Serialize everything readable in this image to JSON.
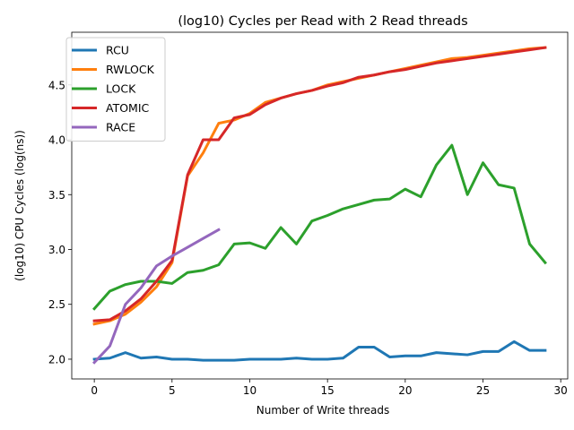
{
  "chart_data": {
    "type": "line",
    "title": "(log10) Cycles per Read with 2 Read threads",
    "xlabel": "Number of Write threads",
    "ylabel": "(log10) CPU Cycles (log(ns))",
    "xlim": [
      -1.45,
      30.45
    ],
    "ylim": [
      1.82,
      4.98
    ],
    "xticks": [
      0,
      5,
      10,
      15,
      20,
      25,
      30
    ],
    "yticks": [
      2.0,
      2.5,
      3.0,
      3.5,
      4.0,
      4.5
    ],
    "xtick_labels": [
      "0",
      "5",
      "10",
      "15",
      "20",
      "25",
      "30"
    ],
    "ytick_labels": [
      "2.0",
      "2.5",
      "3.0",
      "3.5",
      "4.0",
      "4.5"
    ],
    "grid": false,
    "legend_position": "top-left",
    "series": [
      {
        "name": "RCU",
        "color": "#1f77b4",
        "x": [
          0,
          1,
          2,
          3,
          4,
          5,
          6,
          7,
          8,
          9,
          10,
          11,
          12,
          13,
          14,
          15,
          16,
          17,
          18,
          19,
          20,
          21,
          22,
          23,
          24,
          25,
          26,
          27,
          28,
          29
        ],
        "values": [
          2.0,
          2.01,
          2.06,
          2.01,
          2.02,
          2.0,
          2.0,
          1.99,
          1.99,
          1.99,
          2.0,
          2.0,
          2.0,
          2.01,
          2.0,
          2.0,
          2.01,
          2.11,
          2.11,
          2.02,
          2.03,
          2.03,
          2.06,
          2.05,
          2.04,
          2.07,
          2.07,
          2.16,
          2.08,
          2.08
        ]
      },
      {
        "name": "RWLOCK",
        "color": "#ff7f0e",
        "x": [
          0,
          1,
          2,
          3,
          4,
          5,
          6,
          7,
          8,
          9,
          10,
          11,
          12,
          13,
          14,
          15,
          16,
          17,
          18,
          19,
          20,
          21,
          22,
          23,
          24,
          25,
          26,
          27,
          28,
          29
        ],
        "values": [
          2.32,
          2.35,
          2.41,
          2.52,
          2.66,
          2.88,
          3.67,
          3.88,
          4.15,
          4.18,
          4.24,
          4.34,
          4.38,
          4.42,
          4.45,
          4.5,
          4.53,
          4.56,
          4.59,
          4.62,
          4.65,
          4.68,
          4.71,
          4.74,
          4.75,
          4.77,
          4.79,
          4.81,
          4.83,
          4.84
        ]
      },
      {
        "name": "LOCK",
        "color": "#2ca02c",
        "x": [
          0,
          1,
          2,
          3,
          4,
          5,
          6,
          7,
          8,
          9,
          10,
          11,
          12,
          13,
          14,
          15,
          16,
          17,
          18,
          19,
          20,
          21,
          22,
          23,
          24,
          25,
          26,
          27,
          28,
          29
        ],
        "values": [
          2.46,
          2.62,
          2.68,
          2.71,
          2.71,
          2.69,
          2.79,
          2.81,
          2.86,
          3.05,
          3.06,
          3.01,
          3.2,
          3.05,
          3.26,
          3.31,
          3.37,
          3.41,
          3.45,
          3.46,
          3.55,
          3.48,
          3.77,
          3.95,
          3.5,
          3.79,
          3.59,
          3.56,
          3.05,
          2.88
        ]
      },
      {
        "name": "ATOMIC",
        "color": "#d62728",
        "x": [
          0,
          1,
          2,
          3,
          4,
          5,
          6,
          7,
          8,
          9,
          10,
          11,
          12,
          13,
          14,
          15,
          16,
          17,
          18,
          19,
          20,
          21,
          22,
          23,
          24,
          25,
          26,
          27,
          28,
          29
        ],
        "values": [
          2.35,
          2.36,
          2.44,
          2.55,
          2.71,
          2.9,
          3.68,
          4.0,
          4.0,
          4.2,
          4.23,
          4.32,
          4.38,
          4.42,
          4.45,
          4.49,
          4.52,
          4.57,
          4.59,
          4.62,
          4.64,
          4.67,
          4.7,
          4.72,
          4.74,
          4.76,
          4.78,
          4.8,
          4.82,
          4.84
        ]
      },
      {
        "name": "RACE",
        "color": "#9467bd",
        "x": [
          0,
          1,
          2,
          3,
          4,
          5,
          6,
          7,
          8
        ],
        "values": [
          1.97,
          2.12,
          2.5,
          2.65,
          2.85,
          2.94,
          3.02,
          3.1,
          3.18
        ]
      }
    ]
  }
}
